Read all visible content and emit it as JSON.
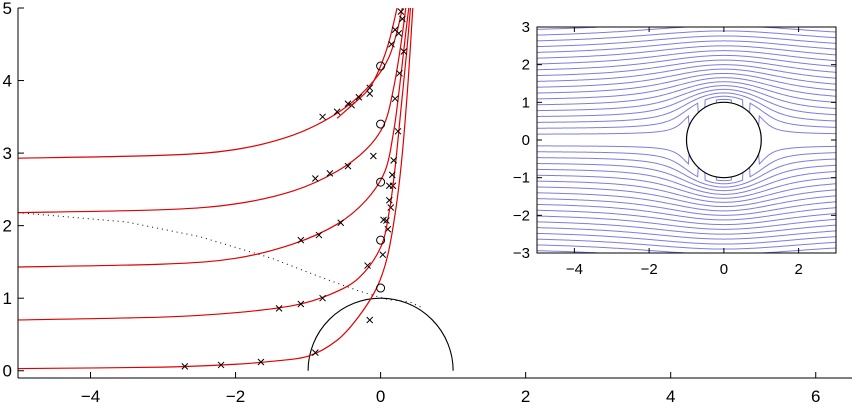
{
  "chart_data": [
    {
      "id": "main",
      "type": "line",
      "title": "",
      "xlabel": "",
      "ylabel": "",
      "xlim": [
        -5,
        6.5
      ],
      "ylim": [
        -0.1,
        5
      ],
      "xticks": [
        -4,
        -2,
        0,
        2,
        4,
        6
      ],
      "yticks": [
        0,
        1,
        2,
        3,
        4,
        5
      ],
      "grid": false,
      "legend": "none",
      "colors": {
        "series": "#e00000",
        "obstacle": "#000000",
        "markers": "#000000",
        "dotted": "#000000"
      },
      "obstacle": {
        "shape": "semicircle",
        "center": [
          0,
          0
        ],
        "radius": 1
      },
      "series": [
        {
          "points": [
            [
              -5,
              0.03
            ],
            [
              -3,
              0.05
            ],
            [
              -2,
              0.09
            ],
            [
              -1.5,
              0.13
            ],
            [
              -1.0,
              0.2
            ],
            [
              -0.6,
              0.42
            ],
            [
              -0.3,
              0.75
            ],
            [
              -0.05,
              1.15
            ],
            [
              0.1,
              1.6
            ],
            [
              0.22,
              2.3
            ],
            [
              0.3,
              3.0
            ],
            [
              0.38,
              4.0
            ],
            [
              0.45,
              5.1
            ]
          ],
          "x_markers": [
            [
              -2.7,
              0.06
            ],
            [
              -2.2,
              0.08
            ],
            [
              -1.65,
              0.12
            ],
            [
              -0.9,
              0.25
            ],
            [
              -0.15,
              0.7
            ],
            [
              0.03,
              1.6
            ],
            [
              0.1,
              1.95
            ],
            [
              0.14,
              2.25
            ],
            [
              0.17,
              2.55
            ]
          ]
        },
        {
          "points": [
            [
              -5,
              0.7
            ],
            [
              -3,
              0.74
            ],
            [
              -2,
              0.8
            ],
            [
              -1.2,
              0.9
            ],
            [
              -0.7,
              1.05
            ],
            [
              -0.3,
              1.28
            ],
            [
              0,
              1.7
            ],
            [
              0.12,
              2.2
            ],
            [
              0.2,
              2.8
            ],
            [
              0.28,
              3.6
            ],
            [
              0.36,
              4.4
            ],
            [
              0.42,
              5.1
            ]
          ],
          "circle_markers": [
            [
              0,
              1.14
            ]
          ],
          "x_markers": [
            [
              -1.4,
              0.86
            ],
            [
              -1.1,
              0.92
            ],
            [
              -0.8,
              1.0
            ],
            [
              -0.18,
              1.45
            ],
            [
              0.08,
              2.07
            ],
            [
              0.12,
              2.35
            ],
            [
              0.16,
              2.7
            ]
          ]
        },
        {
          "points": [
            [
              -5,
              1.43
            ],
            [
              -3,
              1.47
            ],
            [
              -2,
              1.55
            ],
            [
              -1.2,
              1.75
            ],
            [
              -0.6,
              2.02
            ],
            [
              -0.2,
              2.35
            ],
            [
              0.06,
              2.75
            ],
            [
              0.18,
              3.3
            ],
            [
              0.26,
              3.9
            ],
            [
              0.34,
              4.6
            ],
            [
              0.4,
              5.1
            ]
          ],
          "circle_markers": [
            [
              0,
              1.8
            ]
          ],
          "x_markers": [
            [
              -1.1,
              1.8
            ],
            [
              -0.85,
              1.87
            ],
            [
              -0.55,
              2.04
            ],
            [
              0.04,
              2.08
            ],
            [
              0.12,
              2.55
            ],
            [
              0.18,
              2.9
            ],
            [
              0.24,
              3.3
            ]
          ]
        },
        {
          "points": [
            [
              -5,
              2.18
            ],
            [
              -3,
              2.22
            ],
            [
              -2,
              2.3
            ],
            [
              -1.2,
              2.48
            ],
            [
              -0.6,
              2.75
            ],
            [
              -0.2,
              3.05
            ],
            [
              0.05,
              3.4
            ],
            [
              0.18,
              3.9
            ],
            [
              0.28,
              4.5
            ],
            [
              0.36,
              5.1
            ]
          ],
          "circle_markers": [
            [
              0,
              2.6
            ]
          ],
          "x_markers": [
            [
              -0.9,
              2.65
            ],
            [
              -0.7,
              2.72
            ],
            [
              -0.45,
              2.82
            ],
            [
              -0.1,
              2.96
            ],
            [
              0.2,
              3.75
            ],
            [
              0.26,
              4.1
            ],
            [
              0.32,
              4.4
            ]
          ]
        },
        {
          "points": [
            [
              -5,
              2.93
            ],
            [
              -3,
              2.97
            ],
            [
              -2,
              3.05
            ],
            [
              -1.2,
              3.25
            ],
            [
              -0.6,
              3.55
            ],
            [
              -0.2,
              3.88
            ],
            [
              0.08,
              4.25
            ],
            [
              0.22,
              4.65
            ],
            [
              0.32,
              5.1
            ]
          ],
          "circle_markers": [
            [
              0,
              3.4
            ]
          ],
          "x_markers": [
            [
              -0.8,
              3.5
            ],
            [
              -0.6,
              3.57
            ],
            [
              -0.4,
              3.66
            ],
            [
              -0.15,
              3.82
            ],
            [
              0.25,
              4.65
            ],
            [
              0.3,
              4.85
            ]
          ]
        },
        {
          "points": [
            [
              -0.6,
              3.48
            ],
            [
              -0.35,
              3.7
            ],
            [
              -0.15,
              3.9
            ],
            [
              0,
              4.2
            ],
            [
              0.12,
              4.55
            ],
            [
              0.25,
              5.1
            ]
          ],
          "circle_markers": [
            [
              0,
              4.2
            ]
          ],
          "x_markers": [
            [
              -0.45,
              3.68
            ],
            [
              -0.3,
              3.77
            ],
            [
              -0.15,
              3.9
            ],
            [
              0.15,
              4.5
            ],
            [
              0.2,
              4.7
            ],
            [
              0.28,
              4.95
            ]
          ]
        }
      ],
      "dotted_line": [
        [
          -5,
          2.18
        ],
        [
          -3.5,
          2.05
        ],
        [
          -2.5,
          1.85
        ],
        [
          -1.5,
          1.55
        ],
        [
          -0.8,
          1.28
        ],
        [
          -0.3,
          1.1
        ],
        [
          0.1,
          0.98
        ],
        [
          0.4,
          0.95
        ],
        [
          0.55,
          0.88
        ]
      ]
    },
    {
      "id": "inset",
      "type": "line",
      "title": "",
      "xlabel": "",
      "ylabel": "",
      "xlim": [
        -5,
        3
      ],
      "ylim": [
        -3,
        3
      ],
      "xticks": [
        -4,
        -2,
        0,
        2
      ],
      "yticks": [
        -3,
        -2,
        -1,
        0,
        1,
        2,
        3
      ],
      "grid": false,
      "legend": "none",
      "colors": {
        "streamlines": "#7d7de0",
        "obstacle": "#000000"
      },
      "obstacle": {
        "shape": "circle",
        "center": [
          0,
          0
        ],
        "radius": 1
      },
      "streamline_offsets": [
        -3.0,
        -2.85,
        -2.7,
        -2.55,
        -2.4,
        -2.25,
        -2.1,
        -1.95,
        -1.8,
        -1.65,
        -1.5,
        -1.35,
        -1.2,
        -1.05,
        -0.9,
        -0.75,
        -0.6,
        -0.45,
        -0.3,
        -0.15,
        0.15,
        0.3,
        0.45,
        0.6,
        0.75,
        0.9,
        1.05,
        1.2,
        1.35,
        1.5,
        1.65,
        1.8,
        1.95,
        2.1,
        2.25,
        2.4,
        2.55,
        2.7,
        2.85,
        3.0
      ]
    }
  ]
}
